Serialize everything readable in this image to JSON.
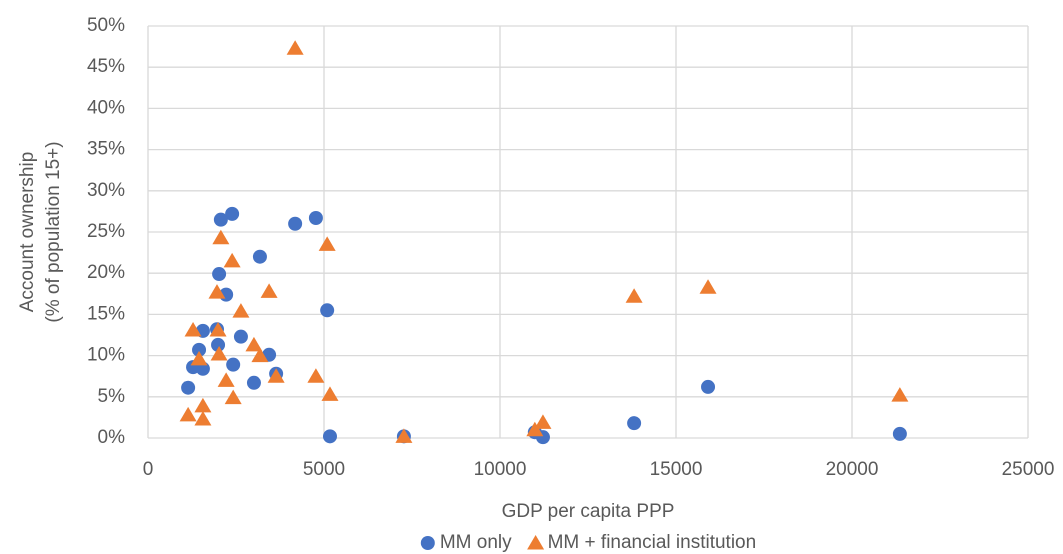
{
  "chart_data": {
    "type": "scatter",
    "xlabel": "GDP per capita PPP",
    "ylabel": [
      "Account ownership",
      "(% of population 15+)"
    ],
    "xlim": [
      0,
      25000
    ],
    "xticks": [
      0,
      5000,
      10000,
      15000,
      20000,
      25000
    ],
    "ylim": [
      0,
      50
    ],
    "yticks": [
      {
        "value": 0,
        "label": "0%"
      },
      {
        "value": 5,
        "label": "5%"
      },
      {
        "value": 10,
        "label": "10%"
      },
      {
        "value": 15,
        "label": "15%"
      },
      {
        "value": 20,
        "label": "20%"
      },
      {
        "value": 25,
        "label": "25%"
      },
      {
        "value": 30,
        "label": "30%"
      },
      {
        "value": 35,
        "label": "35%"
      },
      {
        "value": 40,
        "label": "40%"
      },
      {
        "value": 45,
        "label": "45%"
      },
      {
        "value": 50,
        "label": "50%"
      }
    ],
    "grid": true,
    "legend": "bottom",
    "series": [
      {
        "name": "MM only",
        "color": "#4472c4",
        "marker": "circle",
        "x": [
          1140,
          1280,
          1450,
          1560,
          1560,
          1960,
          1990,
          2020,
          2070,
          2220,
          2390,
          2420,
          2640,
          3010,
          3180,
          3440,
          3640,
          4180,
          4770,
          5090,
          5170,
          7270,
          10990,
          11220,
          13810,
          15910,
          21360
        ],
        "values": [
          6.1,
          8.6,
          10.7,
          13.0,
          8.4,
          13.2,
          11.3,
          19.9,
          26.5,
          17.4,
          27.2,
          8.9,
          12.3,
          6.7,
          22.0,
          10.1,
          7.8,
          26.0,
          26.7,
          15.5,
          0.2,
          0.2,
          0.7,
          0.1,
          1.8,
          6.2,
          0.5
        ]
      },
      {
        "name": "MM + financial institution",
        "color": "#ed7d31",
        "marker": "triangle",
        "x": [
          4180,
          1140,
          1280,
          1450,
          1560,
          1560,
          1960,
          1990,
          2020,
          2070,
          2220,
          2390,
          2420,
          2640,
          3010,
          3180,
          3440,
          3640,
          4770,
          5090,
          5170,
          7270,
          10990,
          11220,
          13810,
          15910,
          21360
        ],
        "values": [
          47.3,
          2.8,
          13.1,
          9.6,
          3.9,
          2.3,
          17.7,
          13.1,
          10.2,
          24.3,
          7.0,
          21.5,
          4.9,
          15.4,
          11.3,
          10.0,
          17.8,
          7.5,
          7.5,
          23.5,
          5.3,
          0.2,
          1.0,
          1.9,
          17.2,
          18.3,
          5.2
        ]
      }
    ]
  }
}
